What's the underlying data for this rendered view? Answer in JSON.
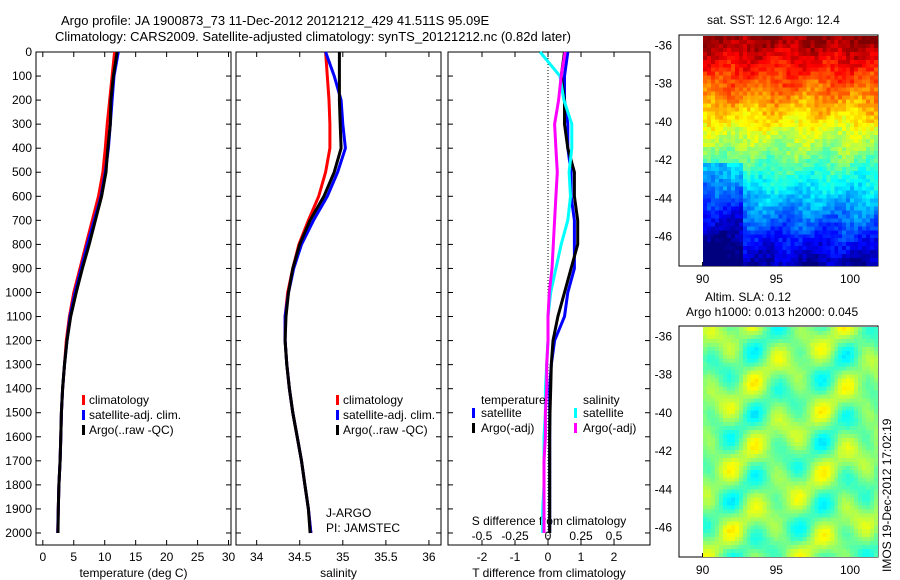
{
  "title": {
    "line1": "Argo profile: JA 1900873_73 11-Dec-2012 20121212_429 41.511S 95.09E",
    "line2": "Climatology: CARS2009. Satellite-adjusted climatology: synTS_20121212.nc (0.82d later)"
  },
  "stamp": "IMOS 19-Dec-2012 17:02:19",
  "chart_data": [
    {
      "type": "line",
      "id": "temperature",
      "xlabel": "temperature (deg C)",
      "ylabel": "",
      "xlim": [
        -1.1,
        30.4
      ],
      "ylim": [
        2050,
        0
      ],
      "xticks": [
        0,
        5,
        10,
        15,
        20,
        25,
        30
      ],
      "yticks": [
        0,
        100,
        200,
        300,
        400,
        500,
        600,
        700,
        800,
        900,
        1000,
        1100,
        1200,
        1300,
        1400,
        1500,
        1600,
        1700,
        1800,
        1900,
        2000
      ],
      "depth": [
        0,
        100,
        200,
        300,
        400,
        500,
        600,
        700,
        800,
        900,
        1000,
        1100,
        1200,
        1300,
        1400,
        1500,
        1600,
        1700,
        1800,
        1900,
        2000
      ],
      "series": [
        {
          "name": "climatology",
          "color": "#ff0000",
          "values": [
            11.6,
            11.2,
            10.8,
            10.4,
            10.1,
            9.7,
            9.0,
            8.0,
            7.0,
            6.0,
            5.0,
            4.3,
            3.8,
            3.5,
            3.2,
            3.0,
            2.9,
            2.8,
            2.6,
            2.5,
            2.4
          ]
        },
        {
          "name": "satellite-adj. clim.",
          "color": "#0000ff",
          "values": [
            12.2,
            11.5,
            11.2,
            10.9,
            10.6,
            10.1,
            9.4,
            8.3,
            7.2,
            6.2,
            5.2,
            4.4,
            3.9,
            3.5,
            3.2,
            3.0,
            2.9,
            2.8,
            2.6,
            2.5,
            2.4
          ]
        },
        {
          "name": "Argo(..raw -QC)",
          "color": "#000000",
          "values": [
            12.0,
            11.4,
            11.0,
            10.9,
            10.5,
            10.2,
            9.5,
            8.5,
            7.5,
            6.4,
            5.4,
            4.5,
            3.9,
            3.5,
            3.2,
            3.0,
            2.9,
            2.8,
            2.6,
            2.5,
            2.45
          ]
        }
      ]
    },
    {
      "type": "line",
      "id": "salinity",
      "xlabel": "salinity",
      "xlim": [
        33.76,
        36.14
      ],
      "ylim": [
        2050,
        0
      ],
      "xticks": [
        34,
        34.5,
        35,
        35.5,
        36
      ],
      "depth": [
        0,
        100,
        200,
        300,
        400,
        500,
        600,
        700,
        800,
        900,
        1000,
        1100,
        1200,
        1300,
        1400,
        1500,
        1600,
        1700,
        1800,
        1900,
        2000
      ],
      "series": [
        {
          "name": "climatology",
          "color": "#ff0000",
          "values": [
            34.8,
            34.82,
            34.84,
            34.85,
            34.85,
            34.8,
            34.72,
            34.6,
            34.49,
            34.42,
            34.36,
            34.33,
            34.33,
            34.35,
            34.38,
            34.42,
            34.47,
            34.52,
            34.56,
            34.6,
            34.63
          ]
        },
        {
          "name": "satellite-adj. clim.",
          "color": "#0000ff",
          "values": [
            34.8,
            34.9,
            34.98,
            35.0,
            35.03,
            34.94,
            34.82,
            34.66,
            34.52,
            34.43,
            34.37,
            34.33,
            34.33,
            34.35,
            34.38,
            34.42,
            34.47,
            34.52,
            34.56,
            34.6,
            34.63
          ]
        },
        {
          "name": "Argo(..raw -QC)",
          "color": "#000000",
          "values": [
            34.96,
            34.96,
            34.96,
            34.97,
            34.98,
            34.9,
            34.78,
            34.62,
            34.5,
            34.42,
            34.37,
            34.34,
            34.33,
            34.35,
            34.38,
            34.42,
            34.47,
            34.52,
            34.56,
            34.6,
            34.62
          ]
        }
      ],
      "annotation": [
        "J-ARGO",
        "PI: JAMSTEC"
      ]
    },
    {
      "type": "line",
      "id": "difference",
      "xlabel": "T difference from climatology",
      "x2label": "S difference from climatology",
      "xlim": [
        -3.03,
        3.09
      ],
      "ylim": [
        2050,
        0
      ],
      "xticks": [
        -2,
        -1,
        0,
        1,
        2
      ],
      "x2ticks": [
        "-0.5",
        "-0.25",
        "0",
        "0.25",
        "0.5"
      ],
      "x2tick_values": [
        -0.5,
        -0.25,
        0,
        0.25,
        0.5
      ],
      "s_scale": 4,
      "depth": [
        0,
        100,
        200,
        300,
        400,
        500,
        600,
        700,
        800,
        900,
        1000,
        1100,
        1200,
        1300,
        1400,
        1500,
        1600,
        1700,
        1800,
        1900,
        2000
      ],
      "legend_headers": [
        "temperature",
        "salinity"
      ],
      "series": [
        {
          "name": "satellite",
          "group": "temperature",
          "color": "#0000ff",
          "values": [
            0.6,
            0.5,
            0.5,
            0.6,
            0.6,
            0.7,
            0.7,
            0.8,
            0.8,
            0.8,
            0.6,
            0.5,
            0.2,
            0.1,
            0.05,
            0.05,
            0.05,
            0.05,
            0.05,
            0.05,
            0.05
          ]
        },
        {
          "name": "Argo(-adj)",
          "group": "temperature",
          "color": "#000000",
          "values": [
            0.5,
            0.4,
            0.5,
            0.5,
            0.6,
            0.8,
            0.8,
            0.9,
            0.9,
            0.7,
            0.5,
            0.3,
            0.15,
            0.1,
            0.08,
            0.06,
            0.05,
            0.05,
            0.05,
            0.05,
            0.05
          ]
        },
        {
          "name": "satellite",
          "group": "salinity",
          "color": "#00ffff",
          "values": [
            -0.06,
            0.09,
            0.12,
            0.18,
            0.18,
            0.16,
            0.17,
            0.15,
            0.1,
            0.06,
            0.02,
            0.0,
            0.0,
            -0.01,
            -0.02,
            -0.02,
            -0.03,
            -0.03,
            -0.03,
            -0.04,
            -0.04
          ]
        },
        {
          "name": "Argo(-adj)",
          "group": "salinity",
          "color": "#ff00ff",
          "values": [
            0.13,
            0.1,
            0.08,
            0.05,
            0.06,
            0.07,
            0.06,
            0.05,
            0.04,
            0.03,
            0.01,
            0.0,
            0.0,
            -0.01,
            -0.01,
            -0.02,
            -0.02,
            -0.03,
            -0.03,
            -0.03,
            -0.03
          ]
        }
      ]
    },
    {
      "type": "heatmap",
      "id": "sst-map",
      "title": "sat. SST: 12.6 Argo: 12.4",
      "xlim": [
        88.4,
        101.9
      ],
      "ylim": [
        -47.6,
        -35.5
      ],
      "data_lon_range": [
        90,
        101.9
      ],
      "xticks": [
        90,
        95,
        100
      ],
      "yticks": [
        -36,
        -38,
        -40,
        -42,
        -44,
        -46
      ],
      "marker": {
        "lon": 95.09,
        "lat": -41.511
      }
    },
    {
      "type": "heatmap",
      "id": "sla-map",
      "title_line1": "Altim. SLA: 0.12",
      "title_line2": "Argo h1000: 0.013 h2000: 0.045",
      "xlim": [
        88.4,
        101.9
      ],
      "ylim": [
        -47.6,
        -35.5
      ],
      "data_lon_range": [
        90,
        101.9
      ],
      "xticks": [
        90,
        95,
        100
      ],
      "yticks": [
        -36,
        -38,
        -40,
        -42,
        -44,
        -46
      ],
      "marker": {
        "lon": 95.09,
        "lat": -41.511
      }
    }
  ]
}
